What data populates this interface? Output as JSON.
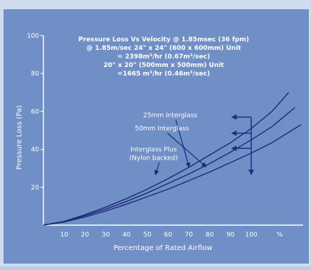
{
  "colors": {
    "background": "#6f8fc6",
    "outer_edge": "#cfdcee",
    "ink": "#ffffff",
    "curve": "#1c2a78",
    "arrow": "#1f2f86"
  },
  "chart_data": {
    "type": "line",
    "title_lines": [
      "Pressure Loss Vs Velocity @ 1.85msec (36 fpm)",
      "@ 1.85m/sec 24\" x 24\" (600 x 600mm) Unit",
      "= 2398m³/hr (0.67m³/sec)",
      "20\" x 20\" (500mm x 500mm) Unit",
      "=1665 m³/hr (0.46m³/sec)"
    ],
    "xlabel": "Percentage of Rated Airflow",
    "ylabel": "Pressure Loss (Pa)",
    "x_unit_label": "%",
    "xlim": [
      0,
      125
    ],
    "ylim": [
      0,
      100
    ],
    "x_ticks": [
      10,
      20,
      30,
      40,
      50,
      60,
      70,
      80,
      90,
      100
    ],
    "y_ticks": [
      20,
      40,
      60,
      80,
      100
    ],
    "grid": false,
    "legend": "none",
    "series": [
      {
        "name": "25mm Interglass",
        "x": [
          0,
          10,
          20,
          30,
          40,
          50,
          60,
          70,
          80,
          90,
          100,
          110,
          118
        ],
        "y": [
          0,
          2,
          5.5,
          9.5,
          14,
          19,
          24.5,
          30.5,
          37,
          43.5,
          51,
          60,
          70
        ]
      },
      {
        "name": "50mm Interglass",
        "x": [
          0,
          10,
          20,
          30,
          40,
          50,
          60,
          70,
          80,
          90,
          100,
          110,
          121
        ],
        "y": [
          0,
          1.8,
          5,
          8.5,
          12.5,
          17,
          22,
          27,
          32.5,
          38.5,
          45,
          52,
          62
        ]
      },
      {
        "name": "Interglass Plus\n(Nylon backed)",
        "x": [
          0,
          10,
          20,
          30,
          40,
          50,
          60,
          70,
          80,
          90,
          100,
          110,
          124
        ],
        "y": [
          0,
          1.6,
          4.3,
          7.5,
          11,
          15,
          19,
          23.5,
          28,
          33,
          38,
          43.5,
          53
        ]
      }
    ],
    "annotations": {
      "series_labels": [
        {
          "lines": [
            "25mm Interglass"
          ],
          "x": 61,
          "y": 57,
          "arrow_to": [
            70,
            31
          ]
        },
        {
          "lines": [
            "50mm Interglass"
          ],
          "x": 57,
          "y": 50,
          "arrow_to": [
            78,
            31
          ]
        },
        {
          "lines": [
            "Interglass Plus",
            "(Nylon backed)"
          ],
          "x": 53,
          "y": 39,
          "arrow_to": [
            54,
            27
          ]
        }
      ],
      "reading_arrows": [
        {
          "from": [
            100,
            57
          ],
          "to": [
            91,
            57
          ]
        },
        {
          "from": [
            100,
            48.5
          ],
          "to": [
            91,
            48.5
          ]
        },
        {
          "from": [
            100,
            40.5
          ],
          "to": [
            91,
            40.5
          ]
        }
      ],
      "drop_arrow": {
        "from": [
          100,
          57
        ],
        "to": [
          100,
          27
        ]
      }
    }
  }
}
